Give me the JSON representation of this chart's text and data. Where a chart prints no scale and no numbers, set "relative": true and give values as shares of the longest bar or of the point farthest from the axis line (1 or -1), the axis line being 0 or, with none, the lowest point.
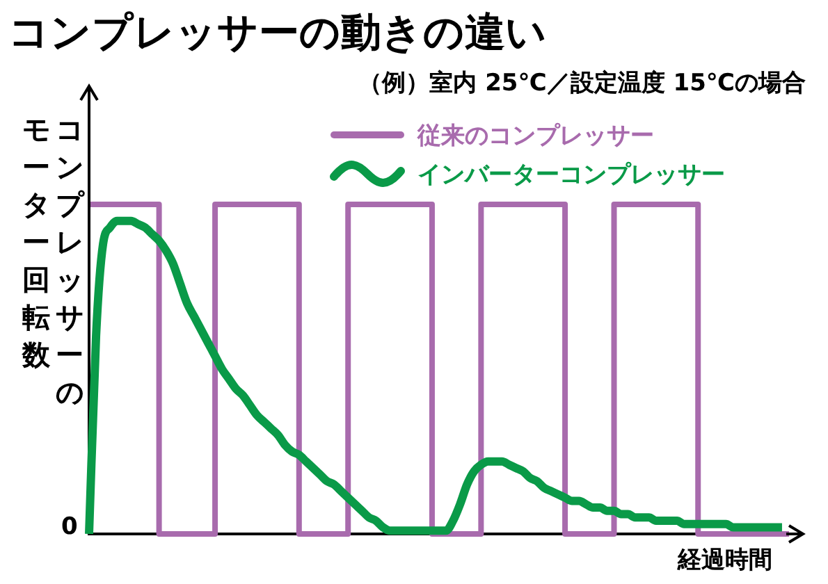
{
  "chart_data": {
    "type": "line",
    "title": "コンプレッサーの動きの違い",
    "subtitle": "（例）室内 25℃／設定温度 15℃の場合",
    "xlabel": "経過時間",
    "ylabel": "コンプレッサーのモーター回転数",
    "annotations": [
      "0"
    ],
    "relative": true,
    "legend": "top right",
    "grid": false,
    "marker": "none",
    "categories": [
      null,
      null,
      null,
      null,
      null,
      null,
      null,
      null,
      null,
      null,
      null,
      null,
      null,
      null,
      null,
      null,
      null,
      null,
      null,
      null,
      null,
      null,
      null,
      null,
      null,
      null,
      null,
      null,
      null,
      null,
      null,
      null,
      null,
      null,
      null,
      null,
      null,
      null,
      null,
      null,
      null,
      null,
      null,
      null,
      null,
      null,
      null,
      null,
      null,
      null,
      null,
      null,
      null,
      null,
      null,
      null,
      null,
      null,
      null,
      null,
      null,
      null,
      null,
      null,
      null,
      null,
      null,
      null,
      null,
      null,
      null,
      null,
      null,
      null,
      null,
      null,
      null,
      null,
      null,
      null,
      null,
      null,
      null,
      null,
      null,
      null,
      null,
      null,
      null,
      null,
      null,
      null,
      null,
      null,
      null,
      null,
      null,
      null,
      null,
      null,
      null
    ],
    "series": [
      {
        "name": "従来のコンプレッサー",
        "type": "step",
        "color": "#a86bad",
        "values": [
          1,
          1,
          1,
          1,
          1,
          1,
          1,
          1,
          1,
          1,
          1,
          0,
          0,
          0,
          0,
          0,
          0,
          0,
          0,
          1,
          1,
          1,
          1,
          1,
          1,
          1,
          1,
          1,
          1,
          1,
          1,
          0,
          0,
          0,
          0,
          0,
          0,
          0,
          1,
          1,
          1,
          1,
          1,
          1,
          1,
          1,
          1,
          1,
          1,
          1,
          0,
          0,
          0,
          0,
          0,
          0,
          0,
          1,
          1,
          1,
          1,
          1,
          1,
          1,
          1,
          1,
          1,
          1,
          1,
          0,
          0,
          0,
          0,
          0,
          0,
          0,
          1,
          1,
          1,
          1,
          1,
          1,
          1,
          1,
          1,
          1,
          1,
          1,
          0,
          0,
          0,
          0,
          0,
          0,
          0,
          0,
          0,
          0,
          0,
          0,
          0
        ]
      },
      {
        "name": "インバーターコンプレッサー",
        "type": "line",
        "color": "#0a9a48",
        "values": [
          0,
          0.6,
          0.88,
          0.93,
          0.95,
          0.95,
          0.95,
          0.94,
          0.93,
          0.91,
          0.89,
          0.86,
          0.82,
          0.76,
          0.7,
          0.66,
          0.62,
          0.58,
          0.54,
          0.5,
          0.47,
          0.44,
          0.42,
          0.39,
          0.36,
          0.34,
          0.32,
          0.3,
          0.27,
          0.25,
          0.24,
          0.22,
          0.2,
          0.18,
          0.16,
          0.15,
          0.13,
          0.11,
          0.09,
          0.07,
          0.05,
          0.04,
          0.02,
          0.01,
          0.01,
          0.01,
          0.01,
          0.01,
          0.01,
          0.01,
          0.01,
          0.01,
          0.04,
          0.09,
          0.15,
          0.19,
          0.21,
          0.22,
          0.22,
          0.22,
          0.21,
          0.2,
          0.19,
          0.17,
          0.16,
          0.14,
          0.13,
          0.12,
          0.11,
          0.1,
          0.1,
          0.09,
          0.08,
          0.08,
          0.07,
          0.07,
          0.06,
          0.06,
          0.05,
          0.05,
          0.05,
          0.04,
          0.04,
          0.04,
          0.04,
          0.03,
          0.03,
          0.03,
          0.03,
          0.03,
          0.03,
          0.03,
          0.02,
          0.02,
          0.02,
          0.02,
          0.02,
          0.02,
          0.02,
          0.02,
          null
        ]
      }
    ]
  }
}
